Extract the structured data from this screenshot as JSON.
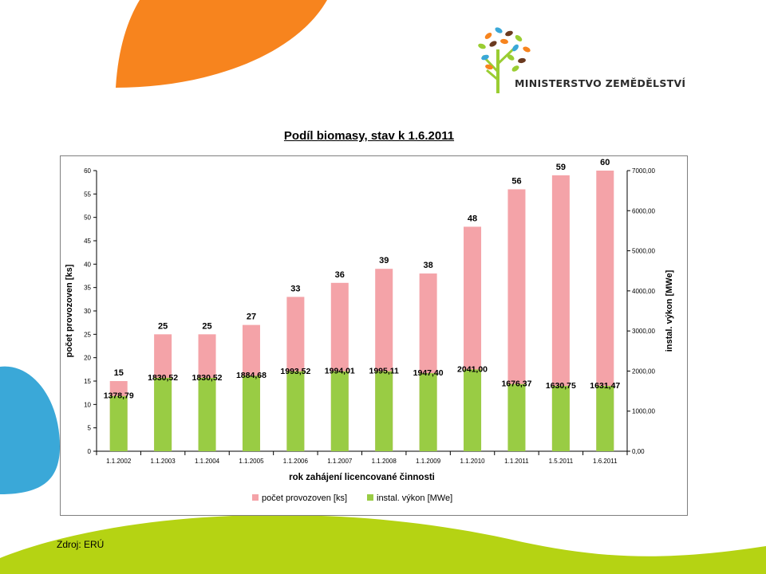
{
  "logo": {
    "text": "MINISTERSTVO ZEMĚDĚLSTVÍ"
  },
  "chart_data": {
    "type": "bar",
    "title": "Podíl biomasy, stav k 1.6.2011",
    "xlabel": "rok zahájení licencované činnosti",
    "ylabel": "počet provozoven [ks]",
    "y2label": "instal. výkon [MWe]",
    "categories": [
      "1.1.2002",
      "1.1.2003",
      "1.1.2004",
      "1.1.2005",
      "1.1.2006",
      "1.1.2007",
      "1.1.2008",
      "1.1.2009",
      "1.1.2010",
      "1.1.2011",
      "1.5.2011",
      "1.6.2011"
    ],
    "series": [
      {
        "name": "počet provozoven [ks]",
        "axis": "left",
        "color": "#f4a3a8",
        "values": [
          15,
          25,
          25,
          27,
          33,
          36,
          39,
          38,
          48,
          56,
          59,
          60
        ],
        "labels": [
          "15",
          "25",
          "25",
          "27",
          "33",
          "36",
          "39",
          "38",
          "48",
          "56",
          "59",
          "60"
        ]
      },
      {
        "name": "instal. výkon [MWe]",
        "axis": "right",
        "color": "#99cc44",
        "values": [
          1378.79,
          1830.52,
          1830.52,
          1884.68,
          1993.52,
          1994.01,
          1995.11,
          1947.4,
          2041.0,
          1676.37,
          1630.75,
          1631.47
        ],
        "labels": [
          "1378,79",
          "1830,52",
          "1830,52",
          "1884,68",
          "1993,52",
          "1994,01",
          "1995,11",
          "1947,40",
          "2041,00",
          "1676,37",
          "1630,75",
          "1631,47"
        ]
      }
    ],
    "ylim": [
      0,
      60
    ],
    "y2lim": [
      0,
      7000
    ],
    "yticks": [
      0,
      5,
      10,
      15,
      20,
      25,
      30,
      35,
      40,
      45,
      50,
      55,
      60
    ],
    "y2ticks": [
      "0,00",
      "1000,00",
      "2000,00",
      "3000,00",
      "4000,00",
      "5000,00",
      "6000,00",
      "7000,00"
    ],
    "legend_position": "bottom",
    "grid": false
  },
  "source": "Zdroj: ERÚ"
}
